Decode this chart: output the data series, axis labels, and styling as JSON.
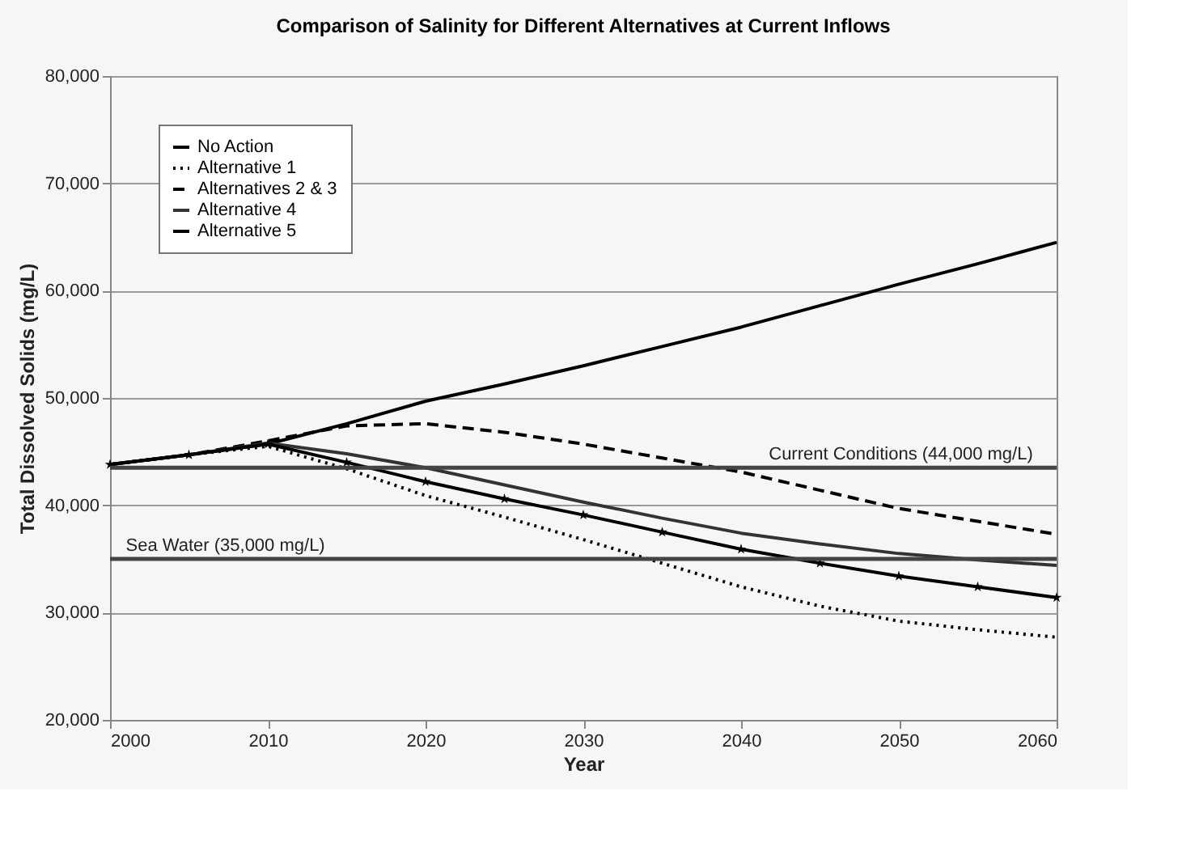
{
  "chart_data": {
    "type": "line",
    "title": "Comparison of Salinity for Different Alternatives at Current Inflows",
    "xlabel": "Year",
    "ylabel": "Total Dissolved Solids (mg/L)",
    "x": [
      2000,
      2005,
      2010,
      2015,
      2020,
      2025,
      2030,
      2035,
      2040,
      2045,
      2050,
      2055,
      2060
    ],
    "xlim": [
      2000,
      2060
    ],
    "xticks": [
      2000,
      2010,
      2020,
      2030,
      2040,
      2050,
      2060
    ],
    "ylim": [
      20000,
      80000
    ],
    "yticks": [
      {
        "value": 20000,
        "label": "20,000"
      },
      {
        "value": 30000,
        "label": "30,000"
      },
      {
        "value": 40000,
        "label": "40,000"
      },
      {
        "value": 50000,
        "label": "50,000"
      },
      {
        "value": 60000,
        "label": "60,000"
      },
      {
        "value": 70000,
        "label": "70,000"
      },
      {
        "value": 80000,
        "label": "80,000"
      }
    ],
    "grid": "y",
    "legend": "top left",
    "series": [
      {
        "name": "No Action",
        "color": "#000000",
        "line_style": "solid",
        "values": [
          43800,
          44700,
          45700,
          47600,
          49700,
          51300,
          53000,
          54800,
          56600,
          58600,
          60600,
          62500,
          64500
        ]
      },
      {
        "name": "Alternative 1",
        "color": "#000000",
        "line_style": "dotted",
        "values": [
          43800,
          44700,
          45500,
          43400,
          40900,
          38900,
          36800,
          34600,
          32400,
          30600,
          29200,
          28400,
          27700
        ]
      },
      {
        "name": "Alternatives 2 & 3",
        "color": "#000000",
        "line_style": "dashed",
        "values": [
          43800,
          44700,
          46000,
          47400,
          47600,
          46800,
          45700,
          44400,
          43100,
          41400,
          39700,
          38500,
          37300
        ]
      },
      {
        "name": "Alternative 4",
        "color": "#333333",
        "line_style": "solid",
        "values": [
          43800,
          44700,
          45800,
          44800,
          43500,
          41900,
          40300,
          38800,
          37400,
          36400,
          35500,
          34900,
          34400
        ]
      },
      {
        "name": "Alternative 5",
        "color": "#000000",
        "line_style": "solid",
        "marker": "star",
        "values": [
          43800,
          44700,
          45700,
          44000,
          42200,
          40600,
          39100,
          37500,
          35900,
          34600,
          33400,
          32400,
          31400
        ]
      }
    ],
    "ref_lines": [
      {
        "axis": "y",
        "value": 43500,
        "label": "Current Conditions (44,000 mg/L)",
        "color": "#444444"
      },
      {
        "axis": "y",
        "value": 35000,
        "label": "Sea Water (35,000 mg/L)",
        "color": "#444444"
      }
    ]
  }
}
